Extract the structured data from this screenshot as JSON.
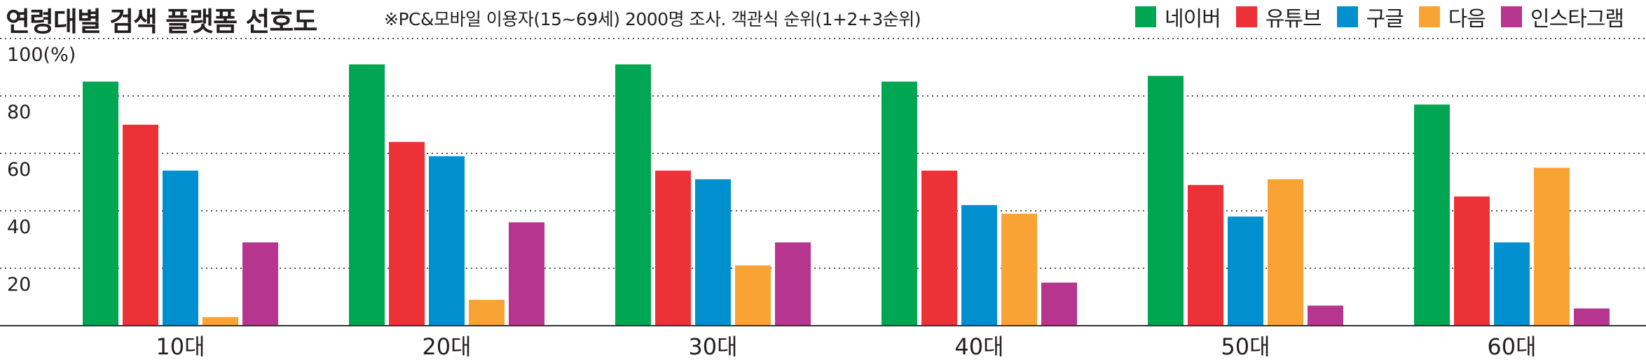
{
  "title": "연령대별 검색 플랫폼 선호도",
  "note": "※PC&모바일 이용자(15~69세) 2000명 조사. 객관식 순위(1+2+3순위)",
  "colors": {
    "naver": "#00a651",
    "youtube": "#ed3237",
    "google": "#0090d0",
    "daum": "#f9a334",
    "instagram": "#b5358f",
    "text": "#231f20",
    "grid": "#555555"
  },
  "chart_data": {
    "type": "bar",
    "title": "연령대별 검색 플랫폼 선호도",
    "xlabel": "",
    "ylabel": "",
    "ylim": [
      0,
      100
    ],
    "grid": true,
    "legend": "top-right",
    "y_ticks": [
      "100(%)",
      "80",
      "60",
      "40",
      "20"
    ],
    "y_tick_values": [
      100,
      80,
      60,
      40,
      20
    ],
    "categories": [
      "10대",
      "20대",
      "30대",
      "40대",
      "50대",
      "60대"
    ],
    "series": [
      {
        "name": "네이버",
        "color": "#00a651",
        "values": [
          85,
          91,
          91,
          85,
          87,
          77
        ]
      },
      {
        "name": "유튜브",
        "color": "#ed3237",
        "values": [
          70,
          64,
          54,
          54,
          49,
          45
        ]
      },
      {
        "name": "구글",
        "color": "#0090d0",
        "values": [
          54,
          59,
          51,
          42,
          38,
          29
        ]
      },
      {
        "name": "다음",
        "color": "#f9a334",
        "values": [
          3,
          9,
          21,
          39,
          51,
          55
        ]
      },
      {
        "name": "인스타그램",
        "color": "#b5358f",
        "values": [
          29,
          36,
          29,
          15,
          7,
          6
        ]
      }
    ]
  }
}
